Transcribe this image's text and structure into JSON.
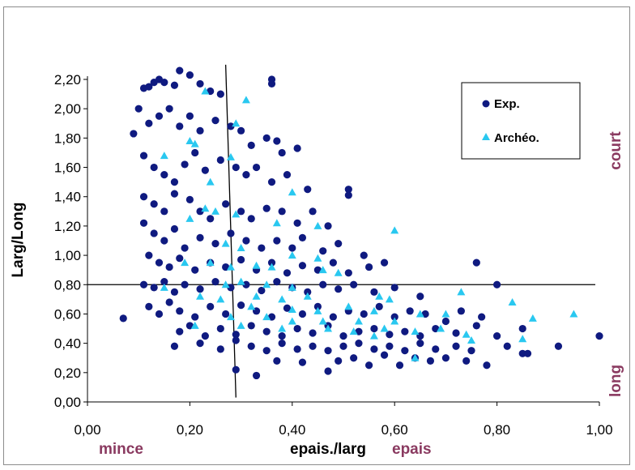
{
  "colors": {
    "exp": "#0f1a80",
    "archeo": "#29c8f0",
    "annotation": "#8a3a60",
    "axis": "#000000",
    "quadrant_line": "#000000"
  },
  "chart_data": {
    "type": "scatter",
    "xlabel": "epais./larg",
    "ylabel": "Larg/Long",
    "xlim": [
      0,
      1
    ],
    "ylim": [
      0,
      2.2
    ],
    "x_ticks": [
      "0,00",
      "0,20",
      "0,40",
      "0,60",
      "0,80",
      "1,00"
    ],
    "y_ticks": [
      "0,00",
      "0,20",
      "0,40",
      "0,60",
      "0,80",
      "1,00",
      "1,20",
      "1,40",
      "1,60",
      "1,80",
      "2,00",
      "2,20"
    ],
    "grid": false,
    "legend_position": "top-right",
    "annotations": {
      "thin": "mince",
      "thick": "epais",
      "short": "court",
      "long": "long"
    },
    "reference_lines": {
      "horizontal": {
        "y": 0.8,
        "x_from": 0,
        "x_to": 1
      },
      "vertical": {
        "from": [
          0.27,
          2.3
        ],
        "to": [
          0.29,
          0.03
        ]
      }
    },
    "series": [
      {
        "name": "Exp.",
        "marker": "circle",
        "points": [
          [
            0.07,
            0.57
          ],
          [
            0.09,
            1.83
          ],
          [
            0.1,
            2.0
          ],
          [
            0.11,
            2.14
          ],
          [
            0.12,
            2.15
          ],
          [
            0.13,
            2.18
          ],
          [
            0.14,
            2.2
          ],
          [
            0.15,
            2.18
          ],
          [
            0.17,
            2.16
          ],
          [
            0.18,
            2.26
          ],
          [
            0.2,
            2.23
          ],
          [
            0.22,
            2.17
          ],
          [
            0.24,
            2.12
          ],
          [
            0.26,
            2.1
          ],
          [
            0.36,
            2.2
          ],
          [
            0.36,
            2.17
          ],
          [
            0.12,
            1.9
          ],
          [
            0.14,
            1.95
          ],
          [
            0.16,
            2.0
          ],
          [
            0.18,
            1.88
          ],
          [
            0.2,
            1.95
          ],
          [
            0.22,
            1.85
          ],
          [
            0.25,
            1.92
          ],
          [
            0.28,
            1.88
          ],
          [
            0.3,
            1.85
          ],
          [
            0.32,
            1.75
          ],
          [
            0.35,
            1.8
          ],
          [
            0.37,
            1.78
          ],
          [
            0.38,
            1.7
          ],
          [
            0.41,
            1.73
          ],
          [
            0.11,
            1.68
          ],
          [
            0.13,
            1.6
          ],
          [
            0.15,
            1.55
          ],
          [
            0.17,
            1.5
          ],
          [
            0.19,
            1.62
          ],
          [
            0.21,
            1.7
          ],
          [
            0.23,
            1.58
          ],
          [
            0.26,
            1.65
          ],
          [
            0.29,
            1.6
          ],
          [
            0.31,
            1.55
          ],
          [
            0.33,
            1.6
          ],
          [
            0.36,
            1.5
          ],
          [
            0.39,
            1.55
          ],
          [
            0.43,
            1.45
          ],
          [
            0.11,
            1.4
          ],
          [
            0.13,
            1.35
          ],
          [
            0.15,
            1.3
          ],
          [
            0.17,
            1.42
          ],
          [
            0.2,
            1.38
          ],
          [
            0.22,
            1.3
          ],
          [
            0.24,
            1.25
          ],
          [
            0.27,
            1.35
          ],
          [
            0.3,
            1.3
          ],
          [
            0.32,
            1.25
          ],
          [
            0.35,
            1.32
          ],
          [
            0.38,
            1.3
          ],
          [
            0.41,
            1.22
          ],
          [
            0.44,
            1.3
          ],
          [
            0.47,
            1.2
          ],
          [
            0.51,
            1.45
          ],
          [
            0.51,
            1.41
          ],
          [
            0.11,
            1.22
          ],
          [
            0.13,
            1.15
          ],
          [
            0.15,
            1.1
          ],
          [
            0.17,
            1.18
          ],
          [
            0.19,
            1.05
          ],
          [
            0.22,
            1.12
          ],
          [
            0.25,
            1.08
          ],
          [
            0.28,
            1.15
          ],
          [
            0.31,
            1.1
          ],
          [
            0.34,
            1.05
          ],
          [
            0.37,
            1.1
          ],
          [
            0.4,
            1.05
          ],
          [
            0.42,
            1.12
          ],
          [
            0.46,
            1.03
          ],
          [
            0.49,
            1.08
          ],
          [
            0.54,
            1.0
          ],
          [
            0.12,
            1.0
          ],
          [
            0.14,
            0.95
          ],
          [
            0.16,
            0.92
          ],
          [
            0.18,
            0.98
          ],
          [
            0.21,
            0.9
          ],
          [
            0.24,
            0.95
          ],
          [
            0.27,
            0.92
          ],
          [
            0.3,
            0.97
          ],
          [
            0.33,
            0.9
          ],
          [
            0.36,
            0.95
          ],
          [
            0.39,
            0.88
          ],
          [
            0.42,
            0.93
          ],
          [
            0.45,
            0.9
          ],
          [
            0.48,
            0.95
          ],
          [
            0.51,
            0.88
          ],
          [
            0.55,
            0.92
          ],
          [
            0.58,
            0.95
          ],
          [
            0.76,
            0.95
          ],
          [
            0.11,
            0.8
          ],
          [
            0.13,
            0.78
          ],
          [
            0.15,
            0.82
          ],
          [
            0.17,
            0.75
          ],
          [
            0.19,
            0.8
          ],
          [
            0.22,
            0.77
          ],
          [
            0.25,
            0.82
          ],
          [
            0.28,
            0.78
          ],
          [
            0.31,
            0.8
          ],
          [
            0.34,
            0.76
          ],
          [
            0.37,
            0.82
          ],
          [
            0.4,
            0.78
          ],
          [
            0.43,
            0.75
          ],
          [
            0.46,
            0.8
          ],
          [
            0.49,
            0.77
          ],
          [
            0.52,
            0.8
          ],
          [
            0.56,
            0.75
          ],
          [
            0.6,
            0.78
          ],
          [
            0.65,
            0.72
          ],
          [
            0.8,
            0.8
          ],
          [
            0.12,
            0.65
          ],
          [
            0.14,
            0.6
          ],
          [
            0.16,
            0.68
          ],
          [
            0.18,
            0.62
          ],
          [
            0.21,
            0.58
          ],
          [
            0.24,
            0.65
          ],
          [
            0.27,
            0.6
          ],
          [
            0.3,
            0.66
          ],
          [
            0.33,
            0.62
          ],
          [
            0.36,
            0.58
          ],
          [
            0.39,
            0.64
          ],
          [
            0.42,
            0.6
          ],
          [
            0.45,
            0.65
          ],
          [
            0.48,
            0.58
          ],
          [
            0.51,
            0.62
          ],
          [
            0.54,
            0.6
          ],
          [
            0.57,
            0.65
          ],
          [
            0.6,
            0.58
          ],
          [
            0.63,
            0.62
          ],
          [
            0.66,
            0.6
          ],
          [
            0.7,
            0.55
          ],
          [
            0.73,
            0.62
          ],
          [
            0.77,
            0.58
          ],
          [
            0.18,
            0.48
          ],
          [
            0.2,
            0.52
          ],
          [
            0.23,
            0.45
          ],
          [
            0.26,
            0.5
          ],
          [
            0.29,
            0.46
          ],
          [
            0.32,
            0.52
          ],
          [
            0.35,
            0.48
          ],
          [
            0.38,
            0.45
          ],
          [
            0.41,
            0.5
          ],
          [
            0.44,
            0.47
          ],
          [
            0.47,
            0.52
          ],
          [
            0.5,
            0.45
          ],
          [
            0.53,
            0.48
          ],
          [
            0.56,
            0.5
          ],
          [
            0.59,
            0.46
          ],
          [
            0.62,
            0.48
          ],
          [
            0.65,
            0.45
          ],
          [
            0.68,
            0.5
          ],
          [
            0.72,
            0.47
          ],
          [
            0.76,
            0.52
          ],
          [
            0.8,
            0.45
          ],
          [
            0.85,
            0.5
          ],
          [
            0.17,
            0.38
          ],
          [
            0.22,
            0.4
          ],
          [
            0.26,
            0.36
          ],
          [
            0.29,
            0.42
          ],
          [
            0.32,
            0.38
          ],
          [
            0.35,
            0.35
          ],
          [
            0.38,
            0.4
          ],
          [
            0.41,
            0.36
          ],
          [
            0.44,
            0.38
          ],
          [
            0.47,
            0.35
          ],
          [
            0.5,
            0.38
          ],
          [
            0.53,
            0.4
          ],
          [
            0.56,
            0.36
          ],
          [
            0.59,
            0.38
          ],
          [
            0.62,
            0.35
          ],
          [
            0.65,
            0.4
          ],
          [
            0.68,
            0.36
          ],
          [
            0.72,
            0.38
          ],
          [
            0.75,
            0.35
          ],
          [
            0.82,
            0.38
          ],
          [
            0.85,
            0.33
          ],
          [
            0.86,
            0.33
          ],
          [
            0.92,
            0.38
          ],
          [
            1.0,
            0.45
          ],
          [
            0.29,
            0.22
          ],
          [
            0.33,
            0.18
          ],
          [
            0.37,
            0.28
          ],
          [
            0.42,
            0.27
          ],
          [
            0.47,
            0.21
          ],
          [
            0.49,
            0.28
          ],
          [
            0.55,
            0.25
          ],
          [
            0.61,
            0.25
          ],
          [
            0.64,
            0.3
          ],
          [
            0.67,
            0.28
          ],
          [
            0.7,
            0.3
          ],
          [
            0.74,
            0.28
          ],
          [
            0.78,
            0.25
          ],
          [
            0.58,
            0.32
          ],
          [
            0.52,
            0.3
          ]
        ]
      },
      {
        "name": "Archéo.",
        "marker": "triangle",
        "points": [
          [
            0.23,
            2.12
          ],
          [
            0.31,
            2.06
          ],
          [
            0.29,
            1.9
          ],
          [
            0.2,
            1.78
          ],
          [
            0.21,
            1.76
          ],
          [
            0.15,
            1.68
          ],
          [
            0.28,
            1.67
          ],
          [
            0.24,
            1.5
          ],
          [
            0.4,
            1.43
          ],
          [
            0.23,
            1.32
          ],
          [
            0.25,
            1.3
          ],
          [
            0.29,
            1.28
          ],
          [
            0.2,
            1.25
          ],
          [
            0.37,
            1.22
          ],
          [
            0.45,
            1.2
          ],
          [
            0.6,
            1.17
          ],
          [
            0.27,
            1.08
          ],
          [
            0.3,
            1.05
          ],
          [
            0.4,
            1.0
          ],
          [
            0.45,
            0.98
          ],
          [
            0.19,
            0.95
          ],
          [
            0.24,
            0.95
          ],
          [
            0.28,
            0.92
          ],
          [
            0.33,
            0.93
          ],
          [
            0.36,
            0.92
          ],
          [
            0.46,
            0.9
          ],
          [
            0.49,
            0.88
          ],
          [
            0.27,
            0.8
          ],
          [
            0.3,
            0.82
          ],
          [
            0.35,
            0.8
          ],
          [
            0.4,
            0.78
          ],
          [
            0.15,
            0.78
          ],
          [
            0.22,
            0.72
          ],
          [
            0.26,
            0.7
          ],
          [
            0.33,
            0.72
          ],
          [
            0.38,
            0.7
          ],
          [
            0.43,
            0.72
          ],
          [
            0.57,
            0.72
          ],
          [
            0.59,
            0.7
          ],
          [
            0.73,
            0.75
          ],
          [
            0.83,
            0.68
          ],
          [
            0.32,
            0.65
          ],
          [
            0.4,
            0.63
          ],
          [
            0.45,
            0.62
          ],
          [
            0.51,
            0.65
          ],
          [
            0.56,
            0.62
          ],
          [
            0.65,
            0.6
          ],
          [
            0.7,
            0.6
          ],
          [
            0.28,
            0.58
          ],
          [
            0.35,
            0.58
          ],
          [
            0.4,
            0.55
          ],
          [
            0.46,
            0.55
          ],
          [
            0.53,
            0.55
          ],
          [
            0.6,
            0.55
          ],
          [
            0.87,
            0.57
          ],
          [
            0.95,
            0.6
          ],
          [
            0.21,
            0.52
          ],
          [
            0.3,
            0.52
          ],
          [
            0.38,
            0.5
          ],
          [
            0.47,
            0.5
          ],
          [
            0.52,
            0.48
          ],
          [
            0.58,
            0.5
          ],
          [
            0.64,
            0.48
          ],
          [
            0.69,
            0.5
          ],
          [
            0.74,
            0.46
          ],
          [
            0.75,
            0.42
          ],
          [
            0.85,
            0.43
          ],
          [
            0.56,
            0.45
          ],
          [
            0.64,
            0.3
          ]
        ]
      }
    ]
  }
}
